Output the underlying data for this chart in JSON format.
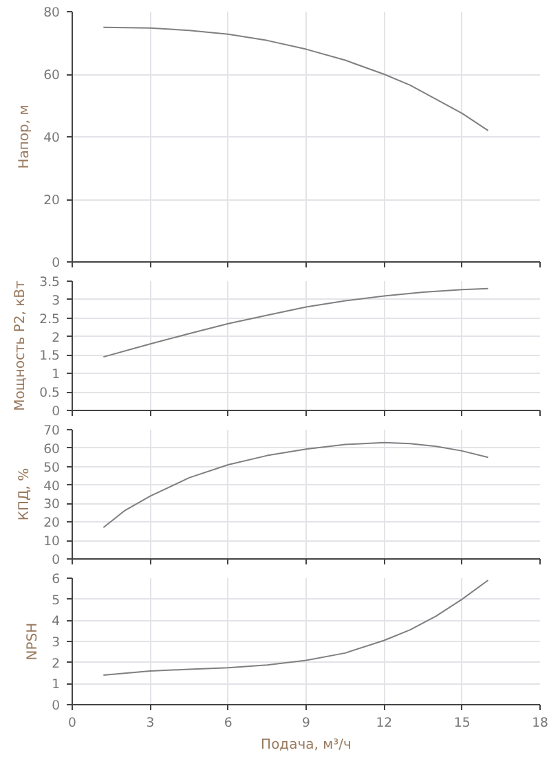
{
  "chart_data": [
    {
      "type": "line",
      "ylabel": "Напор, м",
      "x": [
        1.2,
        3,
        4.5,
        6,
        7.5,
        9,
        10.5,
        12,
        13,
        14,
        15,
        16
      ],
      "series": [
        {
          "color": "#7f7f7f",
          "values": [
            75,
            74.8,
            74,
            72.8,
            70.8,
            68,
            64.5,
            60,
            56.5,
            52,
            47.5,
            42
          ]
        }
      ],
      "xlim": [
        0,
        18
      ],
      "xticks": [
        0,
        3,
        6,
        9,
        12,
        15,
        18
      ],
      "ylim": [
        0,
        80
      ],
      "yticks": [
        0,
        20,
        40,
        60,
        80
      ],
      "grid": true,
      "tick_labels": "y"
    },
    {
      "type": "line",
      "ylabel": "Мощность P2, кВт",
      "x": [
        1.2,
        3,
        4.5,
        6,
        7.5,
        9,
        10.5,
        12,
        13.5,
        15,
        16
      ],
      "series": [
        {
          "color": "#7f7f7f",
          "values": [
            1.45,
            1.8,
            2.08,
            2.35,
            2.58,
            2.8,
            2.97,
            3.1,
            3.2,
            3.27,
            3.3
          ]
        }
      ],
      "xlim": [
        0,
        18
      ],
      "xticks": [
        0,
        3,
        6,
        9,
        12,
        15,
        18
      ],
      "ylim": [
        0,
        3.5
      ],
      "yticks": [
        0,
        0.5,
        1,
        1.5,
        2,
        2.5,
        3,
        3.5
      ],
      "grid": true,
      "tick_labels": "y"
    },
    {
      "type": "line",
      "ylabel": "КПД, %",
      "x": [
        1.2,
        2,
        3,
        4.5,
        6,
        7.5,
        9,
        10.5,
        12,
        13,
        14,
        15,
        16
      ],
      "series": [
        {
          "color": "#7f7f7f",
          "values": [
            17,
            26,
            34,
            44,
            51,
            56,
            59.5,
            62,
            63,
            62.5,
            61,
            58.5,
            55
          ]
        }
      ],
      "xlim": [
        0,
        18
      ],
      "xticks": [
        0,
        3,
        6,
        9,
        12,
        15,
        18
      ],
      "ylim": [
        0,
        70
      ],
      "yticks": [
        0,
        10,
        20,
        30,
        40,
        50,
        60,
        70
      ],
      "grid": true,
      "tick_labels": "y"
    },
    {
      "type": "line",
      "ylabel": "NPSH",
      "xlabel": "Подача, м³/ч",
      "x": [
        1.2,
        3,
        4.5,
        6,
        7.5,
        9,
        10.5,
        12,
        13,
        14,
        15,
        16
      ],
      "series": [
        {
          "color": "#7f7f7f",
          "values": [
            1.4,
            1.6,
            1.68,
            1.75,
            1.88,
            2.1,
            2.45,
            3.05,
            3.55,
            4.2,
            5.0,
            5.9
          ]
        }
      ],
      "xlim": [
        0,
        18
      ],
      "xticks": [
        0,
        3,
        6,
        9,
        12,
        15,
        18
      ],
      "ylim": [
        0,
        6
      ],
      "yticks": [
        0,
        1,
        2,
        3,
        4,
        5,
        6
      ],
      "grid": true
    }
  ]
}
